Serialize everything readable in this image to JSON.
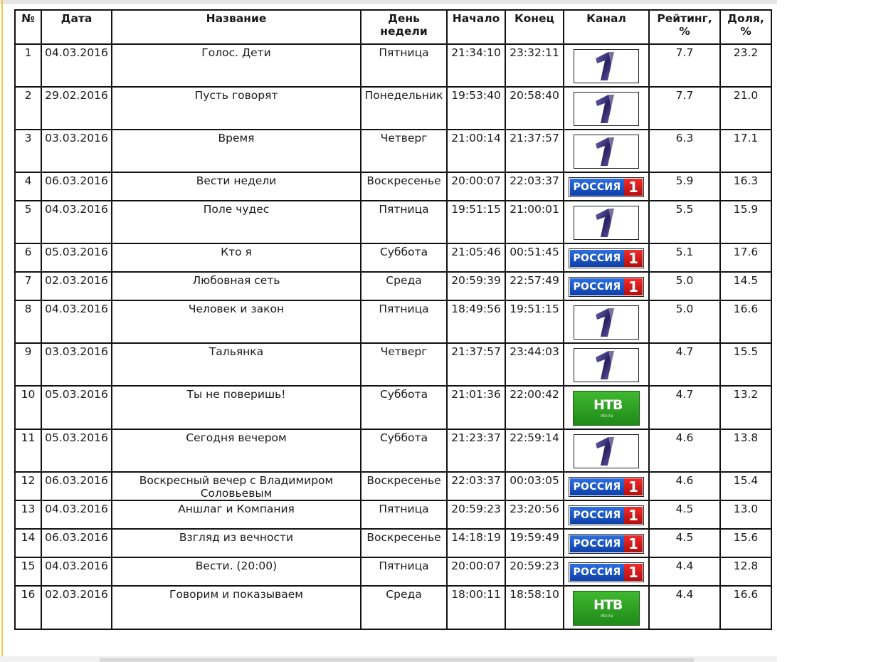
{
  "table": {
    "headers": {
      "num": "№",
      "date": "Дата",
      "title": "Название",
      "weekday": "День недели",
      "start": "Начало",
      "end": "Конец",
      "channel": "Канал",
      "rating": "Рейтинг, %",
      "share": "Доля, %"
    },
    "channels": {
      "perviy": {
        "logo_icon": "perviy-kanal-logo",
        "color": "#2a2060"
      },
      "rossiya": {
        "logo_icon": "rossiya-1-logo",
        "text": "РОССИЯ",
        "digit": "1",
        "color_blue": "#1a4fc0",
        "color_red": "#d81c1c"
      },
      "ntv": {
        "logo_icon": "ntv-logo",
        "text": "НТВ",
        "sub": "ntv.ru",
        "color": "#2fa524"
      }
    },
    "rows": [
      {
        "num": "1",
        "date": "04.03.2016",
        "title": "Голос. Дети",
        "weekday": "Пятница",
        "start": "21:34:10",
        "end": "23:32:11",
        "channel": "perviy",
        "rating": "7.7",
        "share": "23.2"
      },
      {
        "num": "2",
        "date": "29.02.2016",
        "title": "Пусть говорят",
        "weekday": "Понедельник",
        "start": "19:53:40",
        "end": "20:58:40",
        "channel": "perviy",
        "rating": "7.7",
        "share": "21.0"
      },
      {
        "num": "3",
        "date": "03.03.2016",
        "title": "Время",
        "weekday": "Четверг",
        "start": "21:00:14",
        "end": "21:37:57",
        "channel": "perviy",
        "rating": "6.3",
        "share": "17.1"
      },
      {
        "num": "4",
        "date": "06.03.2016",
        "title": "Вести недели",
        "weekday": "Воскресенье",
        "start": "20:00:07",
        "end": "22:03:37",
        "channel": "rossiya",
        "rating": "5.9",
        "share": "16.3"
      },
      {
        "num": "5",
        "date": "04.03.2016",
        "title": "Поле чудес",
        "weekday": "Пятница",
        "start": "19:51:15",
        "end": "21:00:01",
        "channel": "perviy",
        "rating": "5.5",
        "share": "15.9"
      },
      {
        "num": "6",
        "date": "05.03.2016",
        "title": "Кто я",
        "weekday": "Суббота",
        "start": "21:05:46",
        "end": "00:51:45",
        "channel": "rossiya",
        "rating": "5.1",
        "share": "17.6"
      },
      {
        "num": "7",
        "date": "02.03.2016",
        "title": "Любовная сеть",
        "weekday": "Среда",
        "start": "20:59:39",
        "end": "22:57:49",
        "channel": "rossiya",
        "rating": "5.0",
        "share": "14.5"
      },
      {
        "num": "8",
        "date": "04.03.2016",
        "title": "Человек и закон",
        "weekday": "Пятница",
        "start": "18:49:56",
        "end": "19:51:15",
        "channel": "perviy",
        "rating": "5.0",
        "share": "16.6"
      },
      {
        "num": "9",
        "date": "03.03.2016",
        "title": "Тальянка",
        "weekday": "Четверг",
        "start": "21:37:57",
        "end": "23:44:03",
        "channel": "perviy",
        "rating": "4.7",
        "share": "15.5"
      },
      {
        "num": "10",
        "date": "05.03.2016",
        "title": "Ты не поверишь!",
        "weekday": "Суббота",
        "start": "21:01:36",
        "end": "22:00:42",
        "channel": "ntv",
        "rating": "4.7",
        "share": "13.2"
      },
      {
        "num": "11",
        "date": "05.03.2016",
        "title": "Сегодня вечером",
        "weekday": "Суббота",
        "start": "21:23:37",
        "end": "22:59:14",
        "channel": "perviy",
        "rating": "4.6",
        "share": "13.8"
      },
      {
        "num": "12",
        "date": "06.03.2016",
        "title": "Воскресный вечер с Владимиром Соловьевым",
        "weekday": "Воскресенье",
        "start": "22:03:37",
        "end": "00:03:05",
        "channel": "rossiya",
        "rating": "4.6",
        "share": "15.4"
      },
      {
        "num": "13",
        "date": "04.03.2016",
        "title": "Аншлаг и Компания",
        "weekday": "Пятница",
        "start": "20:59:23",
        "end": "23:20:56",
        "channel": "rossiya",
        "rating": "4.5",
        "share": "13.0"
      },
      {
        "num": "14",
        "date": "06.03.2016",
        "title": "Взгляд из вечности",
        "weekday": "Воскресенье",
        "start": "14:18:19",
        "end": "19:59:49",
        "channel": "rossiya",
        "rating": "4.5",
        "share": "15.6"
      },
      {
        "num": "15",
        "date": "04.03.2016",
        "title": "Вести. (20:00)",
        "weekday": "Пятница",
        "start": "20:00:07",
        "end": "20:59:23",
        "channel": "rossiya",
        "rating": "4.4",
        "share": "12.8"
      },
      {
        "num": "16",
        "date": "02.03.2016",
        "title": "Говорим и показываем",
        "weekday": "Среда",
        "start": "18:00:11",
        "end": "18:58:10",
        "channel": "ntv",
        "rating": "4.4",
        "share": "16.6"
      }
    ]
  }
}
